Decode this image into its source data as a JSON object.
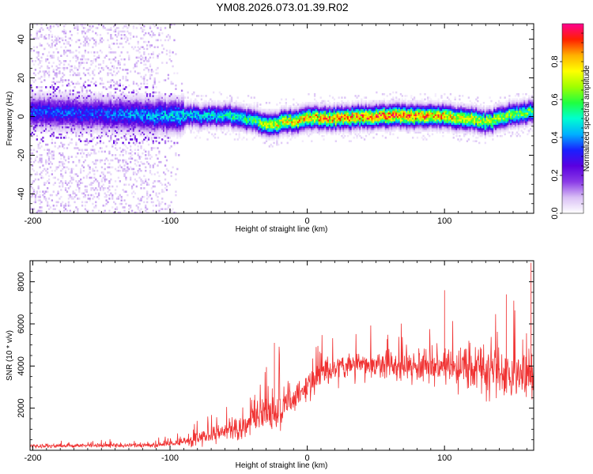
{
  "title": "YM08.2026.073.01.39.R02",
  "colors": {
    "snr_line": "#f03232",
    "axes": "#000000",
    "background": "#ffffff"
  },
  "chart_data": [
    {
      "type": "heatmap",
      "name": "spectrogram",
      "xlabel": "Height of straight line (km)",
      "ylabel": "Frequency (Hz)",
      "xlim": [
        -202,
        165
      ],
      "ylim": [
        -50,
        48
      ],
      "xticks": [
        -200,
        -100,
        0,
        100
      ],
      "yticks": [
        -40,
        -20,
        0,
        20,
        40
      ],
      "colorbar": {
        "label": "Normalized spectral amplitude",
        "range": [
          0,
          1
        ],
        "ticks": [
          "0.0",
          "0.2",
          "0.4",
          "0.6",
          "0.8"
        ],
        "colormap": [
          "#ffffff",
          "#d9c0f5",
          "#8a3ae6",
          "#5a00e0",
          "#1a20ff",
          "#00b0ff",
          "#00ffd0",
          "#20ff40",
          "#a0ff00",
          "#ffff00",
          "#ffb000",
          "#ff2000",
          "#ff0090"
        ]
      },
      "ridge": {
        "x": [
          -200,
          -150,
          -100,
          -60,
          -40,
          -30,
          -15,
          0,
          30,
          60,
          90,
          110,
          130,
          150,
          165
        ],
        "freq": [
          2,
          1,
          0,
          0,
          -2,
          -5,
          -3,
          -1,
          -1,
          0,
          0,
          -1,
          -3,
          1,
          2
        ],
        "peak_amplitude": [
          0.35,
          0.35,
          0.45,
          0.5,
          0.55,
          0.7,
          0.75,
          0.8,
          0.85,
          0.9,
          0.85,
          0.75,
          0.7,
          0.65,
          0.6
        ]
      },
      "noise_region": {
        "x_from": -202,
        "x_to": -90
      }
    },
    {
      "type": "line",
      "name": "snr",
      "xlabel": "Height of straight line (km)",
      "ylabel": "SNR (10 * v/v)",
      "xlim": [
        -202,
        165
      ],
      "ylim": [
        0,
        9000
      ],
      "xticks": [
        -200,
        -100,
        0,
        100
      ],
      "yticks": [
        2000,
        4000,
        6000,
        8000
      ],
      "envelope": {
        "x": [
          -202,
          -110,
          -90,
          -70,
          -50,
          -35,
          -20,
          -10,
          0,
          10,
          20,
          40,
          60,
          80,
          100,
          120,
          140,
          165
        ],
        "mean": [
          200,
          250,
          400,
          700,
          1100,
          1600,
          2000,
          2400,
          3000,
          3600,
          3900,
          4100,
          4100,
          4000,
          3900,
          3800,
          3700,
          3700
        ],
        "spread": [
          120,
          150,
          300,
          500,
          800,
          1100,
          1200,
          1100,
          1000,
          900,
          800,
          800,
          900,
          1100,
          1300,
          1500,
          1700,
          1900
        ]
      },
      "spikes": [
        {
          "x": -24,
          "y": 5100
        },
        {
          "x": 100,
          "y": 7600
        },
        {
          "x": 145,
          "y": 7400
        },
        {
          "x": 163,
          "y": 8900
        }
      ]
    }
  ]
}
